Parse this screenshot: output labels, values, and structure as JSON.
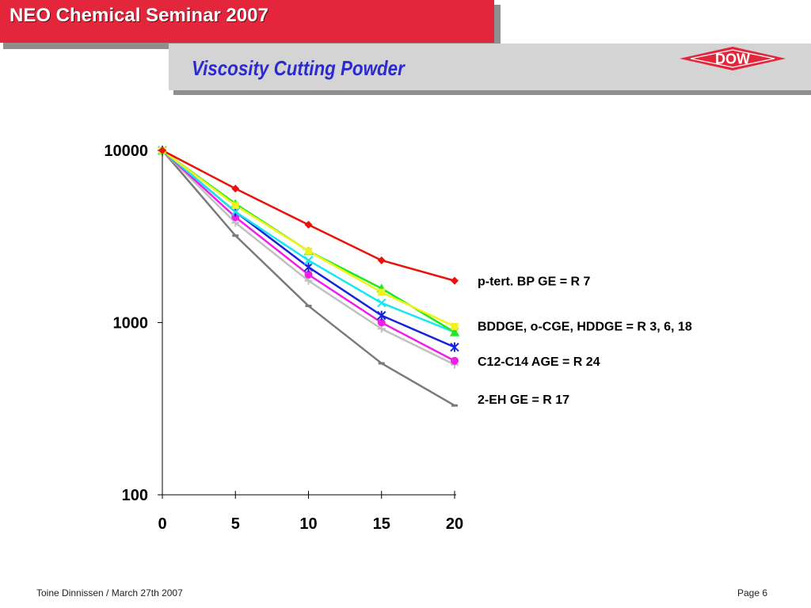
{
  "header": {
    "title": "NEO Chemical Seminar 2007",
    "subtitle": "Viscosity Cutting Powder",
    "logo_text": "DOW"
  },
  "footer": {
    "author": "Toine Dinnissen / March 27th 2007",
    "page": "Page 6"
  },
  "colors": {
    "header_red": "#e3263b",
    "subtitle_blue": "#2a2ad0",
    "subtitle_band": "#d4d4d4"
  },
  "chart_data": {
    "type": "line",
    "title": "",
    "xlabel": "",
    "ylabel": "",
    "x": [
      0,
      5,
      10,
      15,
      20
    ],
    "xlim": [
      0,
      20
    ],
    "ylim": [
      100,
      10000
    ],
    "yscale": "log",
    "x_ticks": [
      "0",
      "5",
      "10",
      "15",
      "20"
    ],
    "y_ticks": [
      {
        "value": 100,
        "label": "100"
      },
      {
        "value": 1000,
        "label": "1000"
      },
      {
        "value": 10000,
        "label": "10000"
      }
    ],
    "grid": false,
    "legend": "none",
    "series": [
      {
        "values": [
          10000,
          6000,
          3700,
          2300,
          1750
        ],
        "color": "#e8140c",
        "marker": "diamond"
      },
      {
        "values": [
          10000,
          4800,
          2600,
          1500,
          950
        ],
        "color": "#f2f21a",
        "marker": "square"
      },
      {
        "values": [
          10000,
          4900,
          2600,
          1580,
          880
        ],
        "color": "#1ee81e",
        "marker": "triangle"
      },
      {
        "values": [
          10000,
          4400,
          2300,
          1300,
          880
        ],
        "color": "#1ae6f0",
        "marker": "x"
      },
      {
        "values": [
          10000,
          4400,
          2100,
          1100,
          720
        ],
        "color": "#1424d8",
        "marker": "star"
      },
      {
        "values": [
          10000,
          4100,
          1900,
          1000,
          600
        ],
        "color": "#f01ee8",
        "marker": "circle"
      },
      {
        "values": [
          10000,
          3800,
          1750,
          920,
          570
        ],
        "color": "#c0c0c0",
        "marker": "plus"
      },
      {
        "values": [
          10000,
          3200,
          1250,
          580,
          330
        ],
        "color": "#7a7a7a",
        "marker": "dash"
      }
    ],
    "annotations": [
      {
        "text": "p-tert. BP GE = R 7",
        "y": 1750
      },
      {
        "text": "BDDGE, o-CGE, HDDGE = R 3, 6, 18",
        "y": 960
      },
      {
        "text": "C12-C14 AGE = R 24",
        "y": 600
      },
      {
        "text": "2-EH GE = R 17",
        "y": 360
      }
    ]
  }
}
